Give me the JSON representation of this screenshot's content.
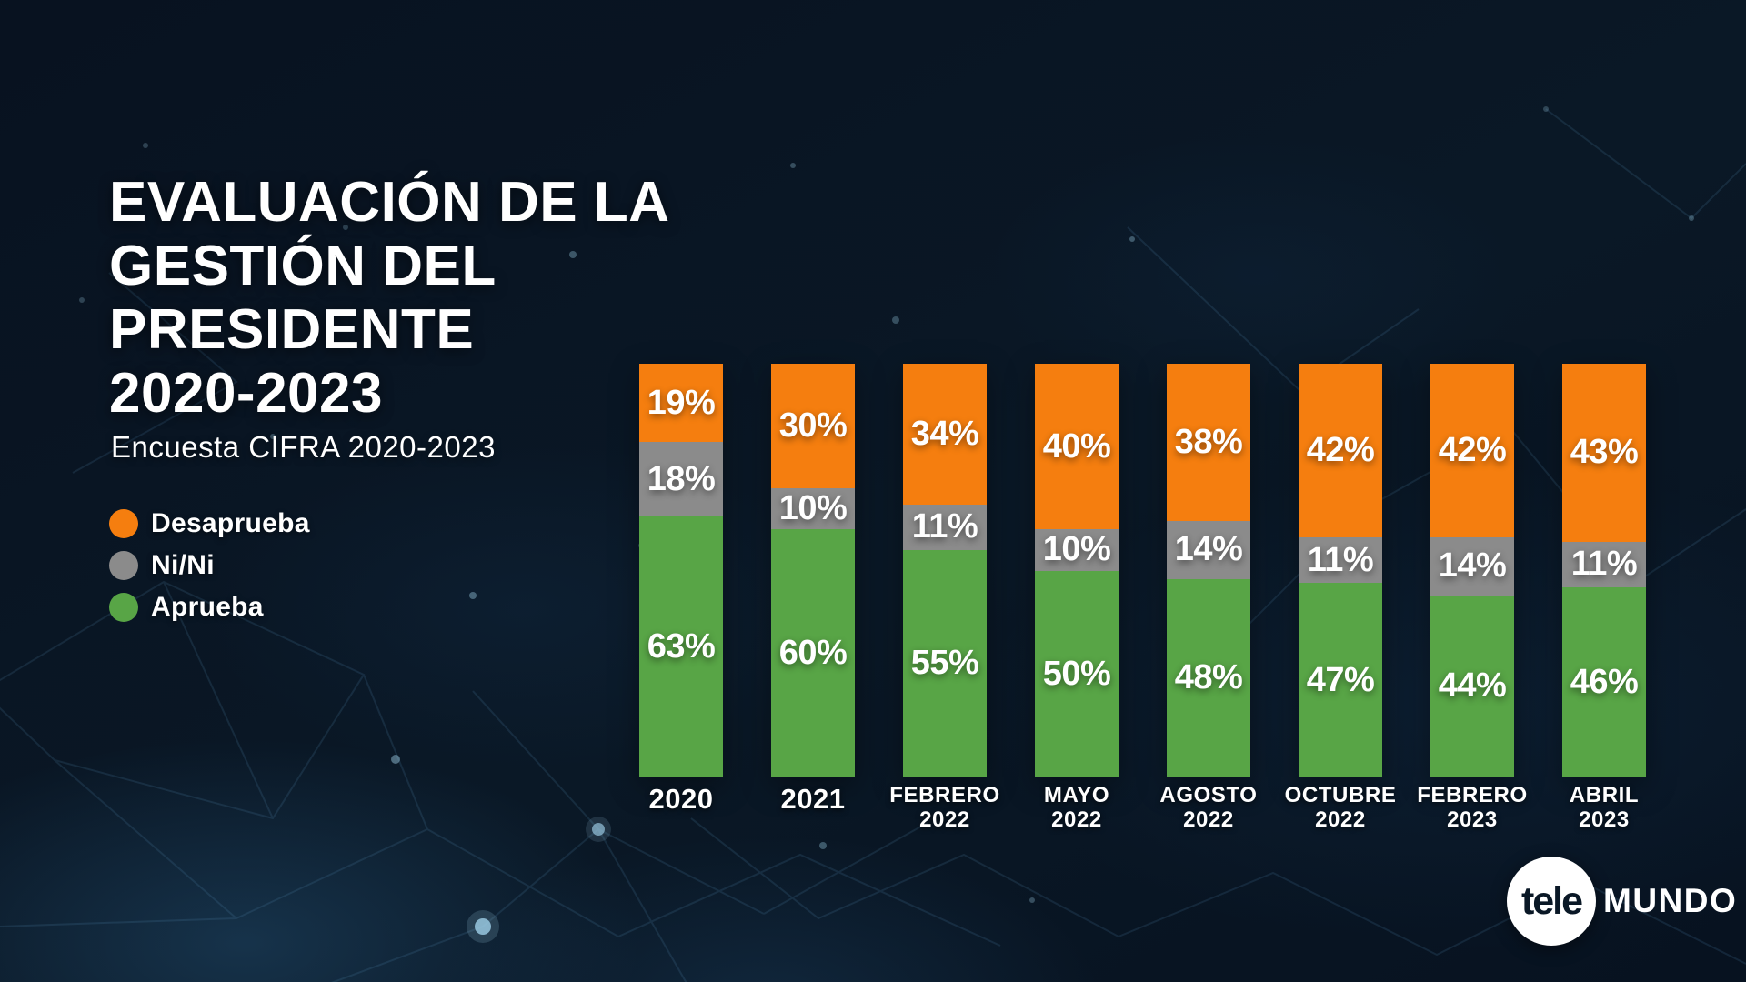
{
  "page": {
    "background_color": "#0a1826"
  },
  "header": {
    "title_lines": [
      "EVALUACIÓN DE LA",
      "GESTIÓN DEL",
      "PRESIDENTE",
      "2020-2023"
    ],
    "subtitle": "Encuesta CIFRA 2020-2023"
  },
  "legend": {
    "items": [
      {
        "label": "Desaprueba",
        "color": "#F57E0F"
      },
      {
        "label": "Ni/Ni",
        "color": "#8B8B8B"
      },
      {
        "label": "Aprueba",
        "color": "#58A546"
      }
    ]
  },
  "chart_data": {
    "type": "bar",
    "stacked": true,
    "title": "Evaluación de la gestión del presidente 2020-2023",
    "subtitle": "Encuesta CIFRA 2020-2023",
    "categories": [
      "2020",
      "2021",
      "FEBRERO\n2022",
      "MAYO\n2022",
      "AGOSTO\n2022",
      "OCTUBRE\n2022",
      "FEBRERO\n2023",
      "ABRIL\n2023"
    ],
    "series": [
      {
        "name": "Desaprueba",
        "color": "#F57E0F",
        "position": "top",
        "values": [
          19,
          30,
          34,
          40,
          38,
          42,
          42,
          43
        ]
      },
      {
        "name": "Ni/Ni",
        "color": "#8B8B8B",
        "position": "middle",
        "values": [
          18,
          10,
          11,
          10,
          14,
          11,
          14,
          11
        ]
      },
      {
        "name": "Aprueba",
        "color": "#58A546",
        "position": "bottom",
        "values": [
          63,
          60,
          55,
          50,
          48,
          47,
          44,
          46
        ]
      }
    ],
    "value_suffix": "%",
    "ylim": [
      0,
      100
    ],
    "grid": false,
    "axes_shown": false,
    "legend_position": "left"
  },
  "logo": {
    "circle_text": "tele",
    "wordmark": "MUNDO"
  }
}
